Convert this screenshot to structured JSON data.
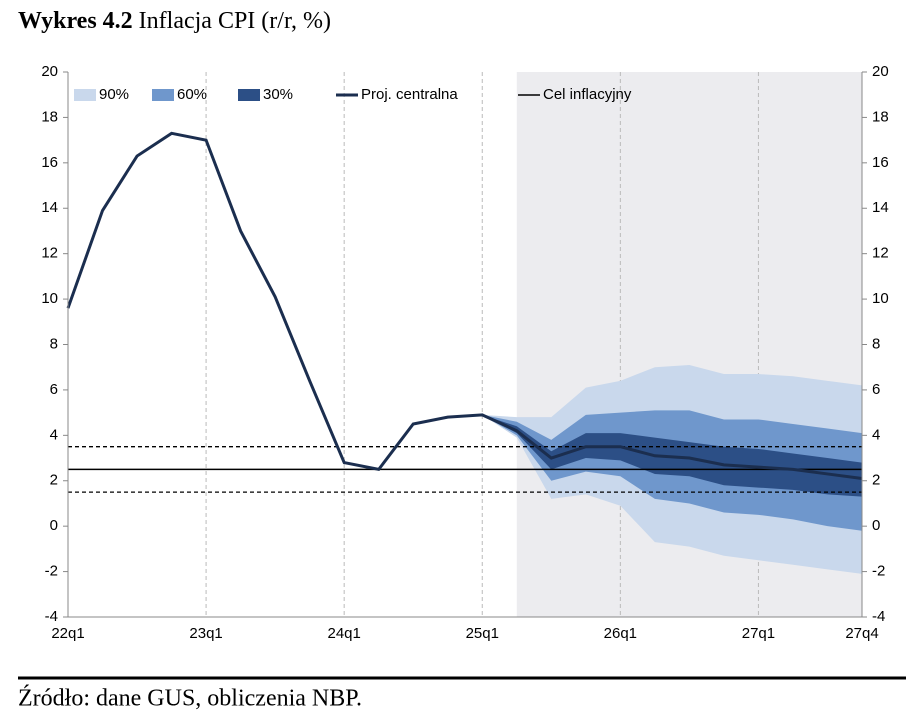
{
  "chart_data": {
    "type": "fan",
    "title_label": "Wykres 4.2",
    "title": "Inflacja CPI (r/r, %)",
    "source": "Źródło: dane GUS, obliczenia NBP.",
    "categories": [
      "22q1",
      null,
      null,
      null,
      "23q1",
      null,
      null,
      null,
      "24q1",
      null,
      null,
      null,
      "25q1",
      null,
      null,
      null,
      "26q1",
      null,
      null,
      null,
      "27q1",
      null,
      null,
      "27q4"
    ],
    "ylim": [
      -4,
      20
    ],
    "yticks": [
      -4,
      -2,
      0,
      2,
      4,
      6,
      8,
      10,
      12,
      14,
      16,
      18,
      20
    ],
    "bands": [
      {
        "name": "90%",
        "color": "#c9d8ec",
        "upper": [
          null,
          null,
          null,
          null,
          null,
          null,
          null,
          null,
          null,
          null,
          null,
          null,
          4.9,
          4.8,
          4.8,
          6.1,
          6.4,
          7.0,
          7.1,
          6.7,
          6.7,
          6.6,
          6.4,
          6.2
        ],
        "lower": [
          null,
          null,
          null,
          null,
          null,
          null,
          null,
          null,
          null,
          null,
          null,
          null,
          4.9,
          3.9,
          1.2,
          1.4,
          0.9,
          -0.7,
          -0.9,
          -1.3,
          -1.5,
          -1.7,
          -1.9,
          -2.1
        ]
      },
      {
        "name": "60%",
        "color": "#6f97cc",
        "upper": [
          null,
          null,
          null,
          null,
          null,
          null,
          null,
          null,
          null,
          null,
          null,
          null,
          4.9,
          4.6,
          3.8,
          4.9,
          5.0,
          5.1,
          5.1,
          4.7,
          4.7,
          4.5,
          4.3,
          4.1
        ],
        "lower": [
          null,
          null,
          null,
          null,
          null,
          null,
          null,
          null,
          null,
          null,
          null,
          null,
          4.9,
          4.0,
          2.0,
          2.4,
          2.2,
          1.2,
          1.0,
          0.6,
          0.5,
          0.3,
          0.0,
          -0.2
        ]
      },
      {
        "name": "30%",
        "color": "#2c4f86",
        "upper": [
          null,
          null,
          null,
          null,
          null,
          null,
          null,
          null,
          null,
          null,
          null,
          null,
          4.9,
          4.4,
          3.3,
          4.1,
          4.1,
          3.9,
          3.7,
          3.5,
          3.4,
          3.2,
          3.0,
          2.8
        ],
        "lower": [
          null,
          null,
          null,
          null,
          null,
          null,
          null,
          null,
          null,
          null,
          null,
          null,
          4.9,
          4.1,
          2.5,
          3.0,
          2.9,
          2.3,
          2.2,
          1.8,
          1.7,
          1.6,
          1.4,
          1.3
        ]
      }
    ],
    "series": [
      {
        "name": "Proj. centralna",
        "color": "#1b2e4f",
        "values": [
          9.6,
          13.9,
          16.3,
          17.3,
          17.0,
          13.0,
          10.1,
          6.4,
          2.8,
          2.5,
          4.5,
          4.8,
          4.9,
          4.2,
          3.0,
          3.5,
          3.5,
          3.1,
          3.0,
          2.7,
          2.6,
          2.5,
          2.3,
          2.1
        ]
      }
    ],
    "target": {
      "name": "Cel inflacyjny",
      "color": "#000000",
      "value": 2.5
    },
    "tolerance": [
      1.5,
      3.5
    ],
    "forecast_shade": "#ececef"
  }
}
